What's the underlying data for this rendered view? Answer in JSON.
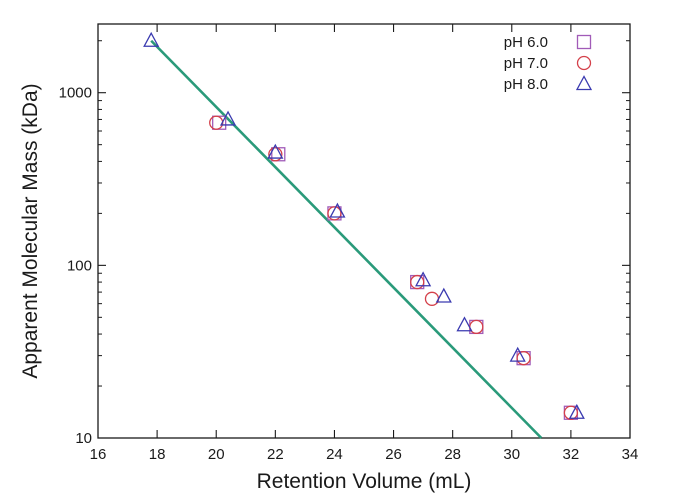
{
  "chart_data": {
    "type": "scatter",
    "xlabel": "Retention Volume (mL)",
    "ylabel": "Apparent Molecular Mass (kDa)",
    "xlim": [
      16,
      34
    ],
    "ylim": [
      10,
      2500
    ],
    "yscale": "log",
    "x_ticks": [
      16,
      18,
      20,
      22,
      24,
      26,
      28,
      30,
      32,
      34
    ],
    "x_tick_labels": [
      "16",
      "18",
      "20",
      "22",
      "24",
      "26",
      "28",
      "30",
      "32",
      "34"
    ],
    "y_ticks": [
      10,
      100,
      1000
    ],
    "y_tick_labels": [
      "10",
      "100",
      "1000"
    ],
    "grid": false,
    "legend_position": "top-right",
    "series": [
      {
        "name": "pH 6.0",
        "marker": "square",
        "color": "#a15bb8",
        "points": [
          {
            "x": 20.1,
            "y": 670
          },
          {
            "x": 22.1,
            "y": 440
          },
          {
            "x": 24.0,
            "y": 200
          },
          {
            "x": 26.8,
            "y": 80
          },
          {
            "x": 28.8,
            "y": 44
          },
          {
            "x": 30.4,
            "y": 29
          },
          {
            "x": 32.0,
            "y": 14
          }
        ]
      },
      {
        "name": "pH 7.0",
        "marker": "circle",
        "color": "#d4404a",
        "points": [
          {
            "x": 20.0,
            "y": 670
          },
          {
            "x": 22.0,
            "y": 440
          },
          {
            "x": 24.0,
            "y": 200
          },
          {
            "x": 26.8,
            "y": 80
          },
          {
            "x": 27.3,
            "y": 64
          },
          {
            "x": 28.8,
            "y": 44
          },
          {
            "x": 30.4,
            "y": 29
          },
          {
            "x": 32.0,
            "y": 14
          }
        ]
      },
      {
        "name": "pH 8.0",
        "marker": "triangle",
        "color": "#3a3ab0",
        "points": [
          {
            "x": 17.8,
            "y": 2000
          },
          {
            "x": 20.4,
            "y": 700
          },
          {
            "x": 22.0,
            "y": 450
          },
          {
            "x": 24.1,
            "y": 205
          },
          {
            "x": 27.0,
            "y": 82
          },
          {
            "x": 27.7,
            "y": 66
          },
          {
            "x": 28.4,
            "y": 45
          },
          {
            "x": 30.2,
            "y": 30
          },
          {
            "x": 32.2,
            "y": 14
          }
        ]
      }
    ],
    "fit_line": {
      "color": "#2a9a7a",
      "points": [
        {
          "x": 17.8,
          "y": 2000
        },
        {
          "x": 31.0,
          "y": 10
        }
      ]
    }
  }
}
